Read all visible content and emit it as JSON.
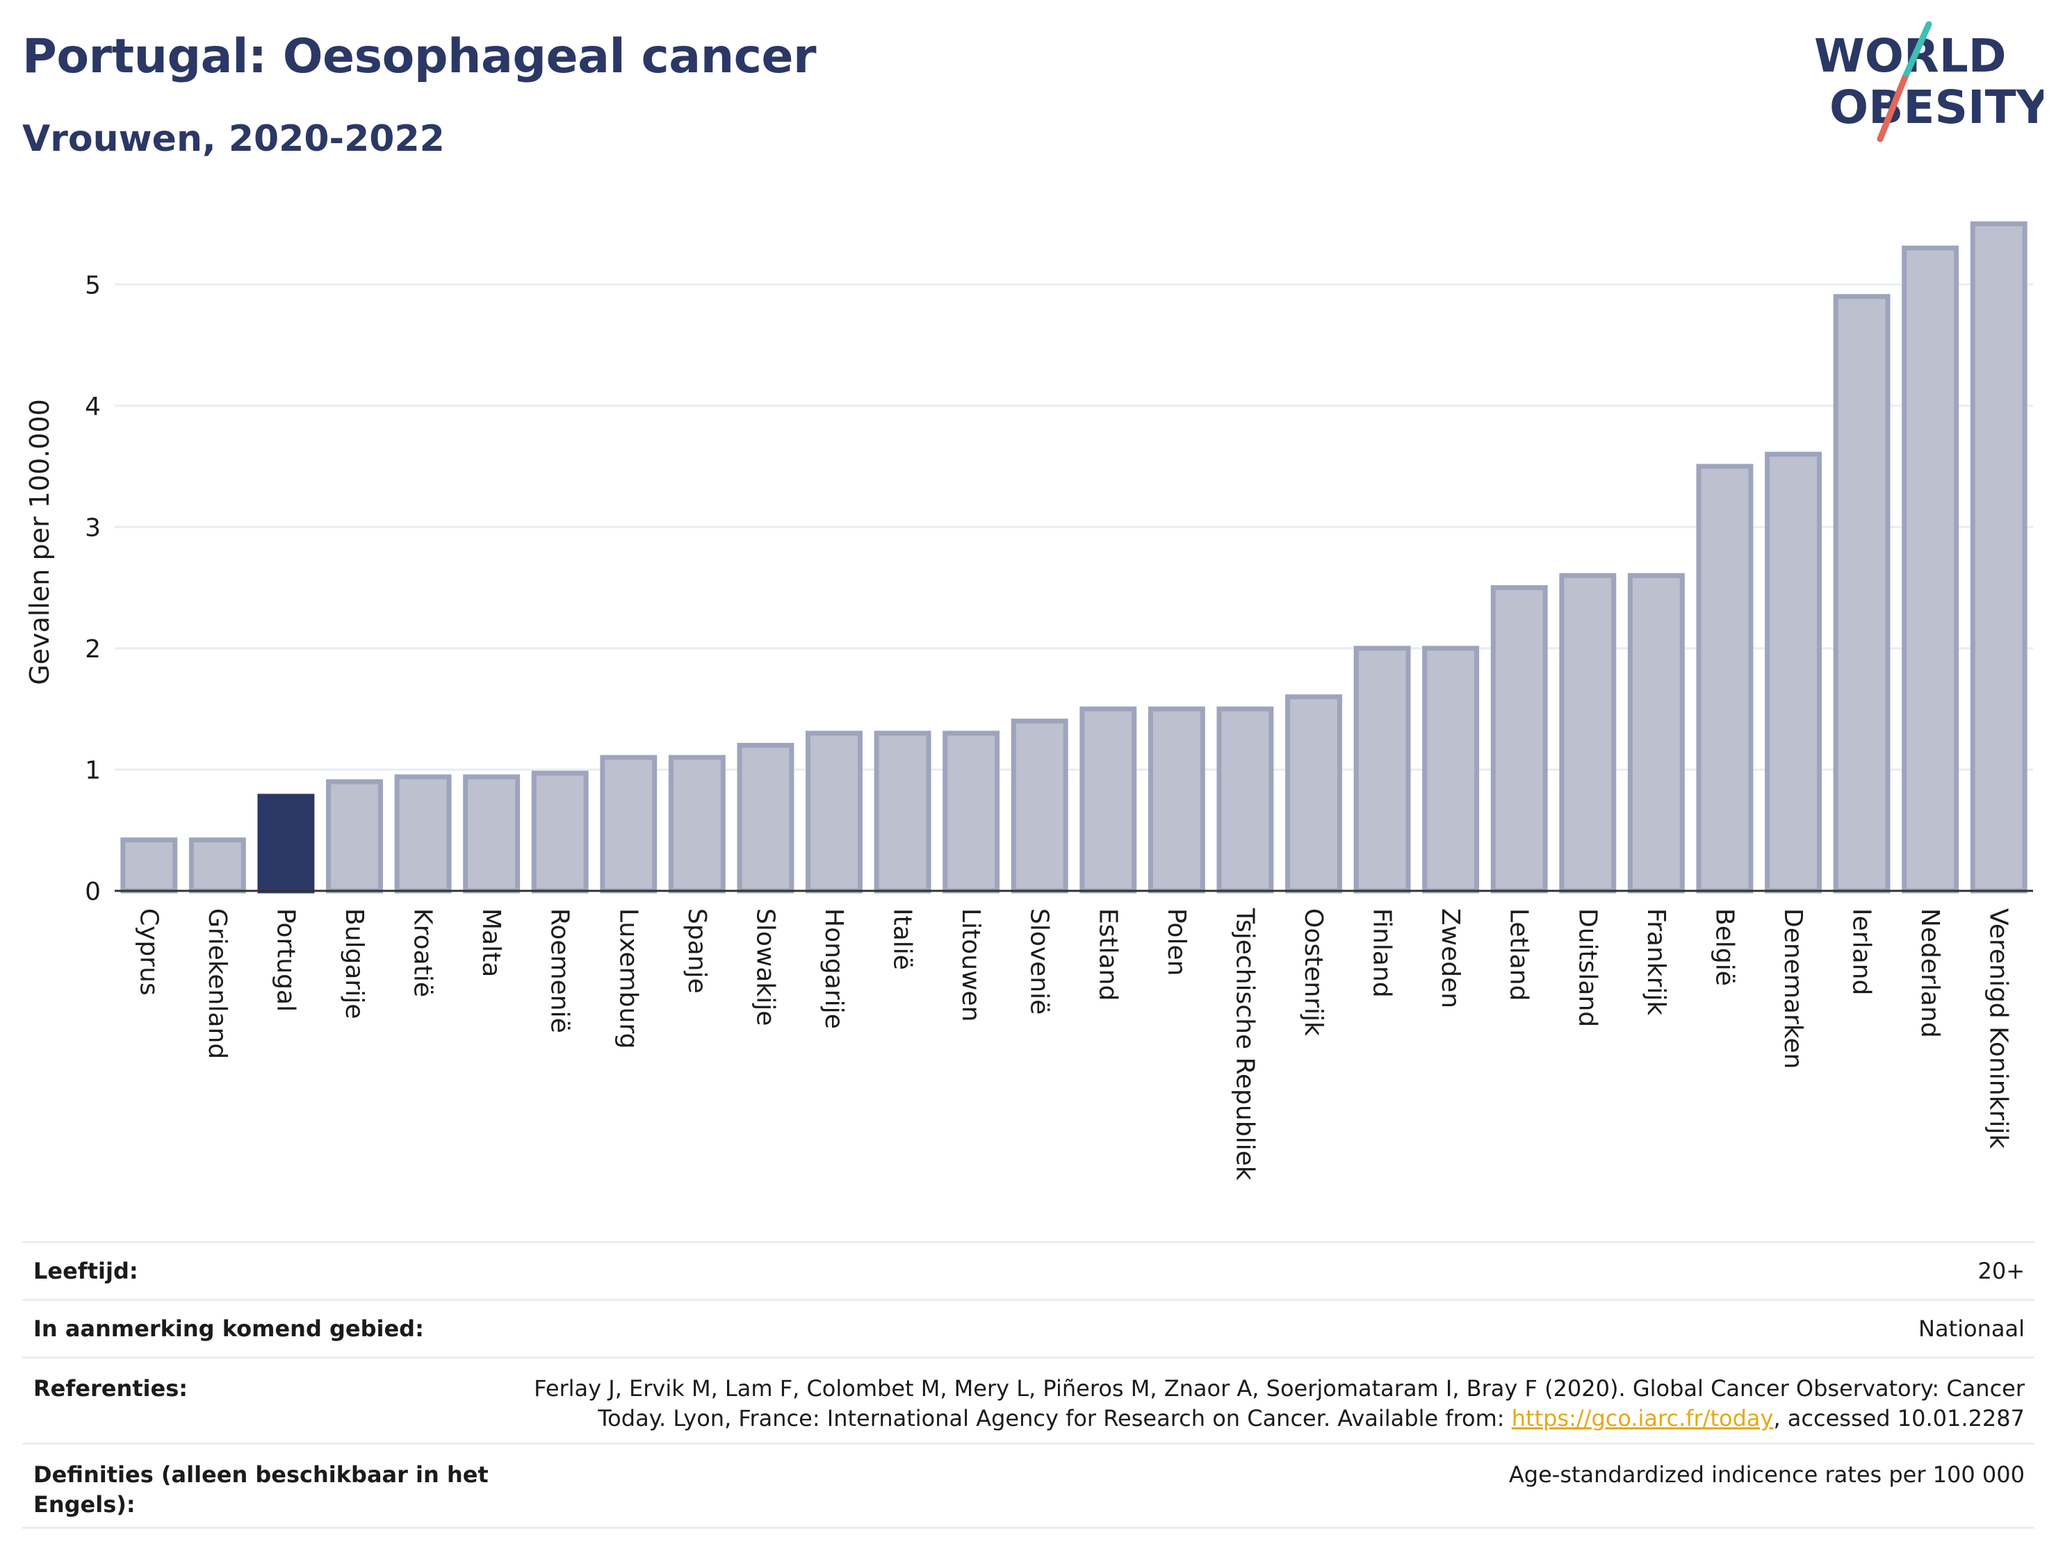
{
  "header": {
    "title": "Portugal: Oesophageal cancer",
    "subtitle": "Vrouwen, 2020-2022"
  },
  "logo": {
    "line1": "WORLD",
    "line2": "OBESITY",
    "text_color": "#2b3866",
    "slash_colors": [
      "#3dbfb3",
      "#e2685a"
    ]
  },
  "colors": {
    "bar": "#bcc0cf",
    "bar_border": "#9ea4bd",
    "highlight": "#2b3866",
    "grid": "#e9edf3",
    "axis": "#333333"
  },
  "chart_data": {
    "type": "bar",
    "ylabel": "Gevallen per 100.000",
    "xlabel": "",
    "ylim": [
      0,
      5.5
    ],
    "yticks": [
      0,
      1,
      2,
      3,
      4,
      5
    ],
    "grid": true,
    "highlight_category": "Portugal",
    "categories": [
      "Cyprus",
      "Griekenland",
      "Portugal",
      "Bulgarije",
      "Kroatië",
      "Malta",
      "Roemenië",
      "Luxemburg",
      "Spanje",
      "Slowakije",
      "Hongarije",
      "Italië",
      "Litouwen",
      "Slovenië",
      "Estland",
      "Polen",
      "Tsjechische Republiek",
      "Oostenrijk",
      "Finland",
      "Zweden",
      "Letland",
      "Duitsland",
      "Frankrijk",
      "België",
      "Denemarken",
      "Ierland",
      "Nederland",
      "Verenigd Koninkrijk"
    ],
    "values": [
      0.42,
      0.42,
      0.78,
      0.9,
      0.94,
      0.94,
      0.97,
      1.1,
      1.1,
      1.2,
      1.3,
      1.3,
      1.3,
      1.4,
      1.5,
      1.5,
      1.5,
      1.6,
      2.0,
      2.0,
      2.5,
      2.6,
      2.6,
      3.5,
      3.6,
      4.9,
      5.3,
      5.5
    ]
  },
  "footer": {
    "rows": [
      {
        "key": "Leeftijd:",
        "value": "20+"
      },
      {
        "key": "In aanmerking komend gebied:",
        "value": "Nationaal"
      },
      {
        "key": "Referenties:",
        "value_line1": "Ferlay J, Ervik M, Lam F, Colombet M, Mery L, Piñeros M, Znaor A, Soerjomataram I, Bray F (2020). Global Cancer Observatory: Cancer",
        "value_line2_pre": "Today. Lyon, France: International Agency for Research on Cancer. Available from: ",
        "link": "https://gco.iarc.fr/today",
        "value_line2_post": ", accessed 10.01.2287"
      },
      {
        "key_line1": "Definities (alleen beschikbaar in het",
        "key_line2": "Engels):",
        "value": "Age-standardized indicence rates per 100 000"
      }
    ]
  }
}
